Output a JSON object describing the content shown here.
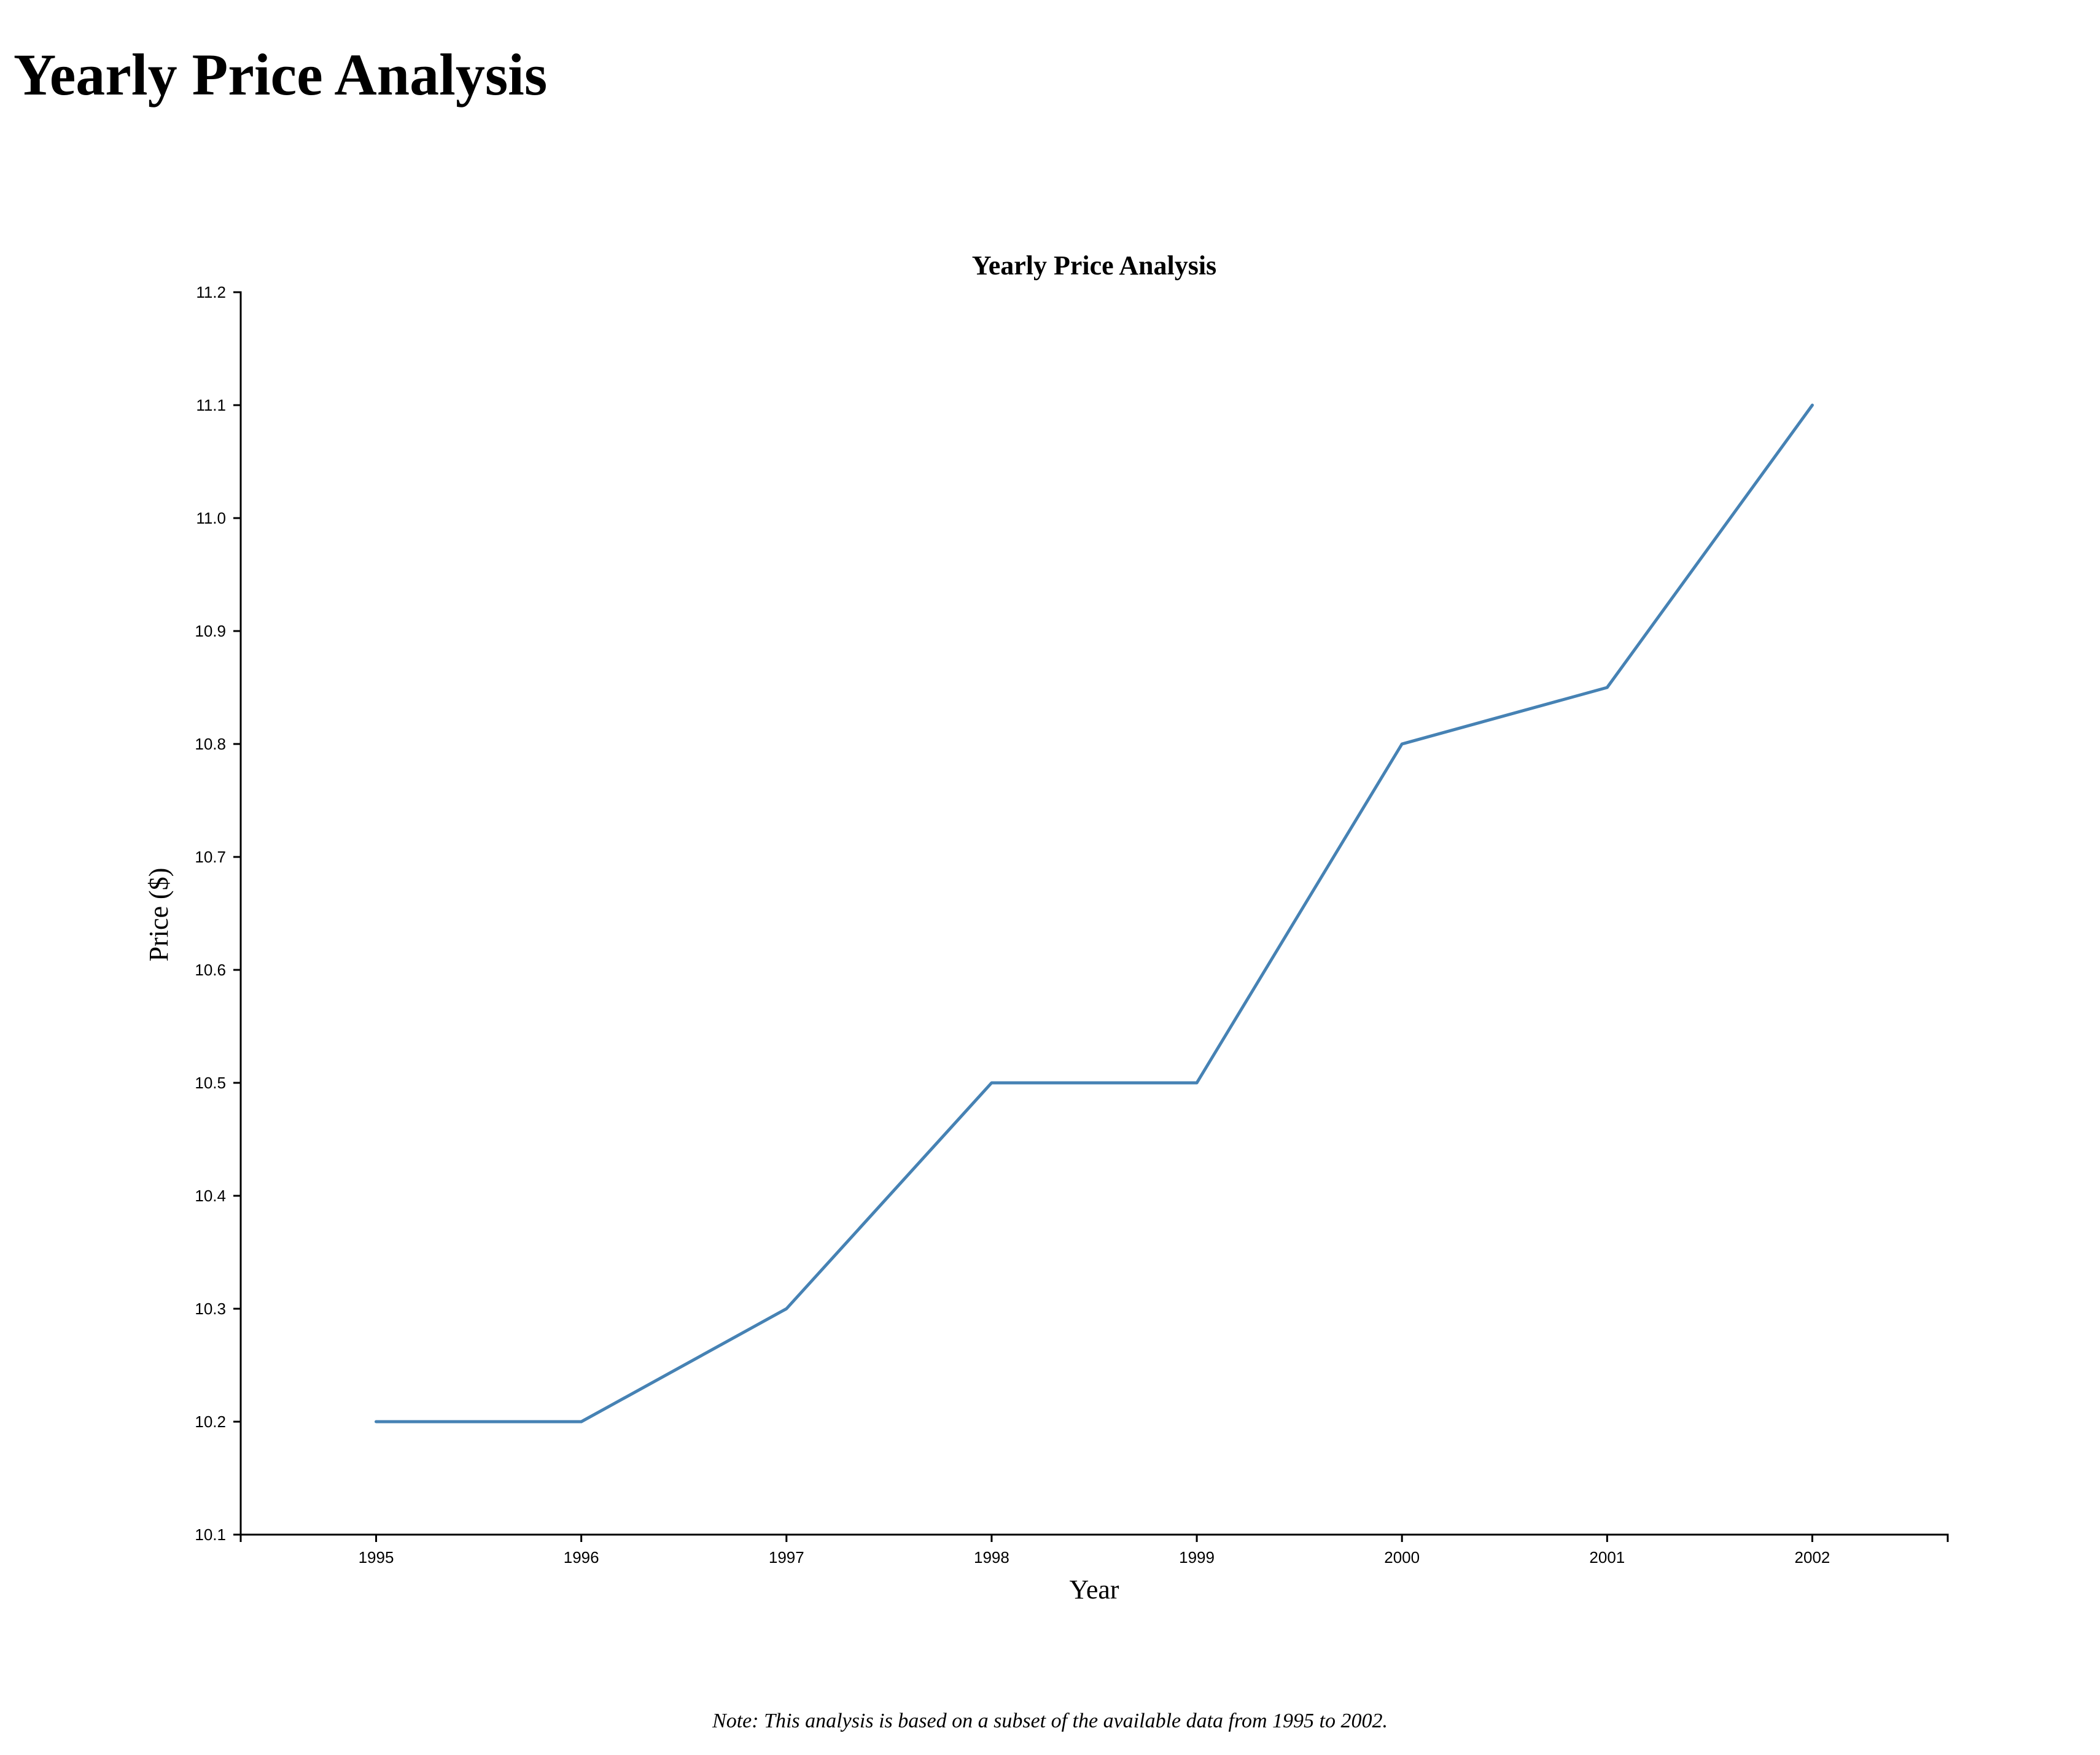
{
  "page": {
    "heading": "Yearly Price Analysis",
    "note": "Note: This analysis is based on a subset of the available data from 1995 to 2002."
  },
  "chart_data": {
    "type": "line",
    "title": "Yearly Price Analysis",
    "xlabel": "Year",
    "ylabel": "Price ($)",
    "x": [
      1995,
      1996,
      1997,
      1998,
      1999,
      2000,
      2001,
      2002
    ],
    "xlim": [
      1994.34,
      2002.66
    ],
    "ylim": [
      10.1,
      11.2
    ],
    "y_ticks": [
      "10.1",
      "10.2",
      "10.3",
      "10.4",
      "10.5",
      "10.6",
      "10.7",
      "10.8",
      "10.9",
      "11.0",
      "11.1",
      "11.2"
    ],
    "grid": false,
    "series": [
      {
        "values": [
          10.2,
          10.2,
          10.3,
          10.5,
          10.5,
          10.8,
          10.85,
          11.1
        ],
        "color": "#4682b4"
      }
    ]
  }
}
